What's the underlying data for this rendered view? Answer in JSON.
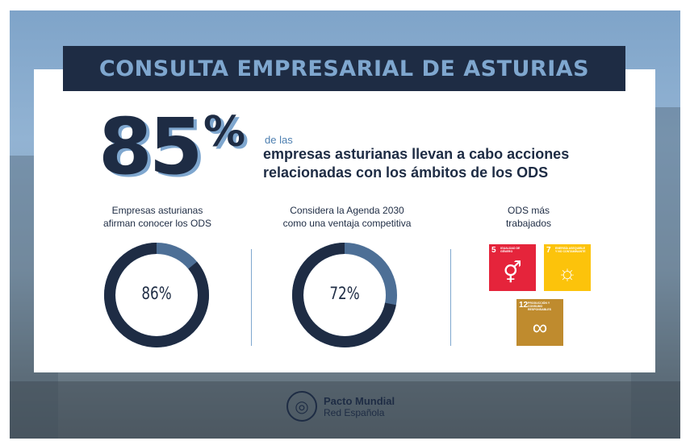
{
  "header": {
    "title": "CONSULTA EMPRESARIAL DE ASTURIAS"
  },
  "headline": {
    "number": "85",
    "percent_sign": "%",
    "intro": "de las",
    "line1": "empresas asturianas llevan a cabo acciones",
    "line2": "relacionadas con los ámbitos de los ODS"
  },
  "stats": [
    {
      "label_line1": "Empresas asturianas",
      "label_line2": "afirman conocer los ODS",
      "value": "86%",
      "fraction": 0.86
    },
    {
      "label_line1": "Considera la Agenda 2030",
      "label_line2": "como una ventaja competitiva",
      "value": "72%",
      "fraction": 0.72
    }
  ],
  "ods": {
    "label_line1": "ODS más",
    "label_line2": "trabajados",
    "goals": [
      {
        "number": "5",
        "title": "IGUALDAD DE GÉNERO",
        "color": "#e5243b",
        "icon": "gender-equality-icon"
      },
      {
        "number": "7",
        "title": "ENERGÍA ASEQUIBLE Y NO CONTAMINANTE",
        "color": "#fcc30b",
        "icon": "sun-icon"
      },
      {
        "number": "12",
        "title": "PRODUCCIÓN Y CONSUMO RESPONSABLES",
        "color": "#bf8b2e",
        "icon": "infinity-icon"
      }
    ]
  },
  "footer": {
    "name": "Pacto Mundial",
    "sub": "Red Española",
    "logo_text": "UN GLOBAL COMPACT"
  },
  "colors": {
    "navy": "#1e2c44",
    "accent": "#7fa7cf",
    "donut_track": "#4d6f96"
  }
}
